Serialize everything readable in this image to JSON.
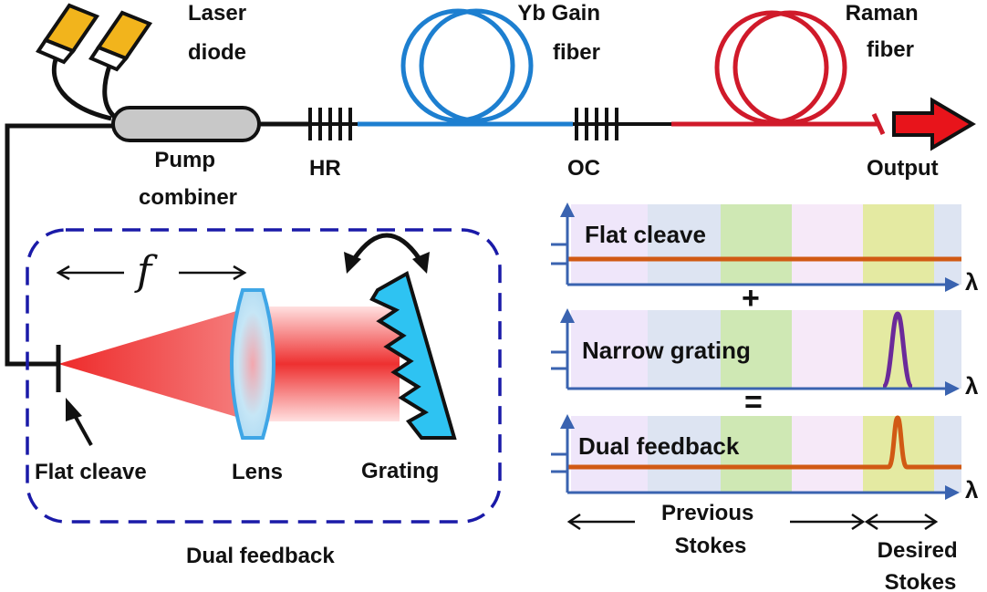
{
  "labels": {
    "laser_line1": "Laser",
    "laser_line2": "diode",
    "gain_line1": "Yb Gain",
    "gain_line2": "fiber",
    "raman_line1": "Raman",
    "raman_line2": "fiber",
    "pump_line1": "Pump",
    "pump_line2": "combiner",
    "hr": "HR",
    "oc": "OC",
    "output": "Output",
    "focal": "f",
    "flat_cleave": "Flat cleave",
    "lens": "Lens",
    "grating": "Grating",
    "dual_feedback": "Dual feedback"
  },
  "spectra": {
    "panel1_label": "Flat cleave",
    "panel2_label": "Narrow grating",
    "panel3_label": "Dual feedback",
    "axis_symbol": "λ",
    "plus": "+",
    "equals": "=",
    "previous_line1": "Previous",
    "previous_line2": "Stokes",
    "desired_line1": "Desired",
    "desired_line2": "Stokes",
    "band_colors": [
      "#efe6fa",
      "#dde4f2",
      "#cfe8b4",
      "#f6e9f8",
      "#e4eaa2",
      "#dde4f2"
    ]
  },
  "colors": {
    "laser_body": "#f2b41c",
    "gain_fiber": "#1d7fd0",
    "raman_fiber": "#d01a2a",
    "output_arrow": "#e8141b",
    "grating_fill": "#2ec3f2",
    "box_dash": "#1a1aa8",
    "axis": "#3a63b0",
    "flat_line": "#d15a14",
    "grating_peak": "#6b2a9a"
  }
}
